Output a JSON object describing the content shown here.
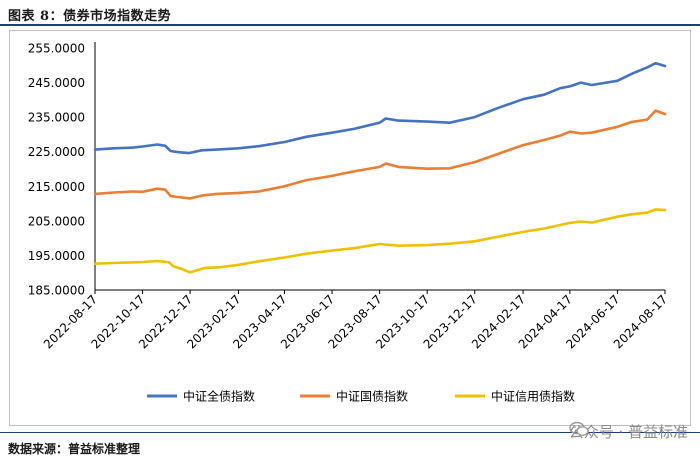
{
  "header": {
    "title": "图表 8：债券市场指数走势"
  },
  "footer": {
    "source": "数据来源：普益标准整理",
    "watermark": "公众号 · 普益标准"
  },
  "colors": {
    "rule": "#1f3f7a"
  },
  "chart_data": {
    "type": "line",
    "title": "",
    "xlabel": "",
    "ylabel": "",
    "ylim": [
      185,
      255
    ],
    "yticks": [
      "255.0000",
      "245.0000",
      "235.0000",
      "225.0000",
      "215.0000",
      "205.0000",
      "195.0000",
      "185.0000"
    ],
    "ytick_values": [
      255,
      245,
      235,
      225,
      215,
      205,
      195,
      185
    ],
    "xticks": [
      "2022-08-17",
      "2022-10-17",
      "2022-12-17",
      "2023-02-17",
      "2023-04-17",
      "2023-06-17",
      "2023-08-17",
      "2023-10-17",
      "2023-12-17",
      "2024-02-17",
      "2024-04-17",
      "2024-06-17",
      "2024-08-17"
    ],
    "xlim": [
      "2022-08-17",
      "2024-08-17"
    ],
    "grid": false,
    "legend_position": "bottom",
    "series": [
      {
        "name": "中证全债指数",
        "color": "#4472c4",
        "points": [
          [
            "2022-08-17",
            225.6
          ],
          [
            "2022-09-10",
            226.0
          ],
          [
            "2022-10-05",
            226.2
          ],
          [
            "2022-10-17",
            226.5
          ],
          [
            "2022-11-05",
            227.1
          ],
          [
            "2022-11-15",
            226.7
          ],
          [
            "2022-11-22",
            225.2
          ],
          [
            "2022-12-01",
            224.9
          ],
          [
            "2022-12-15",
            224.6
          ],
          [
            "2023-01-01",
            225.4
          ],
          [
            "2023-01-20",
            225.6
          ],
          [
            "2023-02-17",
            226.0
          ],
          [
            "2023-03-15",
            226.6
          ],
          [
            "2023-04-17",
            227.8
          ],
          [
            "2023-05-15",
            229.3
          ],
          [
            "2023-06-17",
            230.5
          ],
          [
            "2023-07-15",
            231.6
          ],
          [
            "2023-08-17",
            233.4
          ],
          [
            "2023-08-25",
            234.6
          ],
          [
            "2023-09-10",
            234.0
          ],
          [
            "2023-10-17",
            233.7
          ],
          [
            "2023-11-15",
            233.4
          ],
          [
            "2023-12-17",
            235.0
          ],
          [
            "2024-01-15",
            237.6
          ],
          [
            "2024-02-17",
            240.2
          ],
          [
            "2024-03-15",
            241.5
          ],
          [
            "2024-04-05",
            243.4
          ],
          [
            "2024-04-17",
            243.9
          ],
          [
            "2024-05-01",
            245.0
          ],
          [
            "2024-05-15",
            244.3
          ],
          [
            "2024-06-17",
            245.5
          ],
          [
            "2024-07-05",
            247.5
          ],
          [
            "2024-07-25",
            249.4
          ],
          [
            "2024-08-05",
            250.6
          ],
          [
            "2024-08-17",
            249.8
          ]
        ]
      },
      {
        "name": "中证国债指数",
        "color": "#ed7d31",
        "points": [
          [
            "2022-08-17",
            212.8
          ],
          [
            "2022-09-10",
            213.2
          ],
          [
            "2022-10-05",
            213.5
          ],
          [
            "2022-10-17",
            213.4
          ],
          [
            "2022-11-05",
            214.3
          ],
          [
            "2022-11-15",
            214.0
          ],
          [
            "2022-11-22",
            212.2
          ],
          [
            "2022-12-01",
            211.9
          ],
          [
            "2022-12-17",
            211.5
          ],
          [
            "2023-01-01",
            212.3
          ],
          [
            "2023-01-20",
            212.8
          ],
          [
            "2023-02-17",
            213.1
          ],
          [
            "2023-03-15",
            213.5
          ],
          [
            "2023-04-17",
            215.0
          ],
          [
            "2023-05-15",
            216.8
          ],
          [
            "2023-06-17",
            218.0
          ],
          [
            "2023-07-15",
            219.3
          ],
          [
            "2023-08-17",
            220.6
          ],
          [
            "2023-08-25",
            221.6
          ],
          [
            "2023-09-10",
            220.6
          ],
          [
            "2023-10-17",
            220.1
          ],
          [
            "2023-11-15",
            220.2
          ],
          [
            "2023-12-17",
            222.0
          ],
          [
            "2024-01-15",
            224.3
          ],
          [
            "2024-02-17",
            226.9
          ],
          [
            "2024-03-15",
            228.4
          ],
          [
            "2024-04-05",
            229.7
          ],
          [
            "2024-04-17",
            230.8
          ],
          [
            "2024-05-01",
            230.3
          ],
          [
            "2024-05-15",
            230.5
          ],
          [
            "2024-06-17",
            232.2
          ],
          [
            "2024-07-05",
            233.6
          ],
          [
            "2024-07-25",
            234.3
          ],
          [
            "2024-08-05",
            236.9
          ],
          [
            "2024-08-17",
            235.9
          ]
        ]
      },
      {
        "name": "中证信用债指数",
        "color": "#f0c000",
        "points": [
          [
            "2022-08-17",
            192.6
          ],
          [
            "2022-09-10",
            192.8
          ],
          [
            "2022-10-05",
            193.0
          ],
          [
            "2022-10-17",
            193.1
          ],
          [
            "2022-11-05",
            193.4
          ],
          [
            "2022-11-20",
            193.0
          ],
          [
            "2022-11-25",
            191.9
          ],
          [
            "2022-12-05",
            191.2
          ],
          [
            "2022-12-17",
            190.1
          ],
          [
            "2023-01-05",
            191.4
          ],
          [
            "2023-01-25",
            191.6
          ],
          [
            "2023-02-17",
            192.3
          ],
          [
            "2023-03-15",
            193.3
          ],
          [
            "2023-04-17",
            194.4
          ],
          [
            "2023-05-15",
            195.5
          ],
          [
            "2023-06-17",
            196.4
          ],
          [
            "2023-07-15",
            197.1
          ],
          [
            "2023-08-17",
            198.3
          ],
          [
            "2023-09-10",
            197.8
          ],
          [
            "2023-10-17",
            198.0
          ],
          [
            "2023-11-15",
            198.4
          ],
          [
            "2023-12-17",
            199.1
          ],
          [
            "2024-01-15",
            200.4
          ],
          [
            "2024-02-17",
            201.8
          ],
          [
            "2024-03-15",
            202.8
          ],
          [
            "2024-04-17",
            204.4
          ],
          [
            "2024-05-01",
            204.8
          ],
          [
            "2024-05-15",
            204.5
          ],
          [
            "2024-06-17",
            206.2
          ],
          [
            "2024-07-05",
            206.9
          ],
          [
            "2024-07-25",
            207.4
          ],
          [
            "2024-08-05",
            208.3
          ],
          [
            "2024-08-17",
            208.1
          ]
        ]
      }
    ]
  }
}
